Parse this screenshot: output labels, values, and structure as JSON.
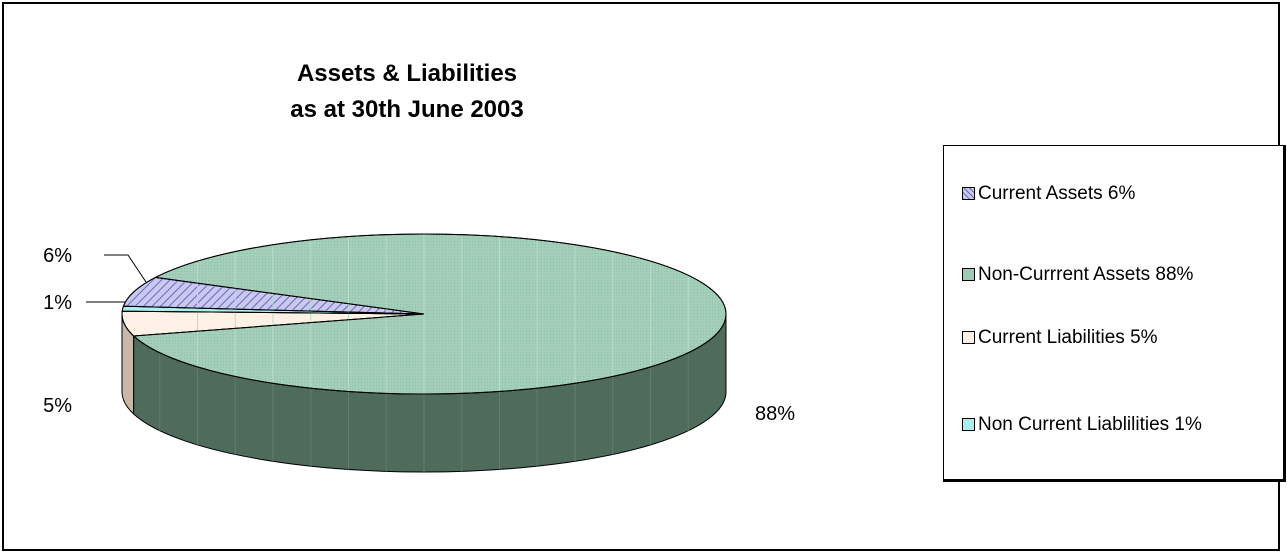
{
  "chart_data": {
    "type": "pie",
    "title": "Assets & Liabilities",
    "subtitle": "as at 30th June 2003",
    "categories": [
      "Current Assets",
      "Non-Currrent Assets",
      "Current Liabilities",
      "Non Current Liablilities"
    ],
    "values": [
      6,
      88,
      5,
      1
    ],
    "value_labels": [
      "6%",
      "88%",
      "5%",
      "1%"
    ],
    "legend_labels": [
      "Current Assets 6%",
      "Non-Currrent Assets 88%",
      "Current Liabilities 5%",
      "Non Current Liablilities 1%"
    ],
    "colors": [
      "#b8b8e8",
      "#9ecbb6",
      "#fdf1e6",
      "#a8f0f0"
    ],
    "side_colors": [
      "#6a6aa0",
      "#4f6b5c",
      "#c7b8a9",
      "#60a8a8"
    ],
    "legend_position": "right",
    "style": "3d-exploded-disc"
  }
}
